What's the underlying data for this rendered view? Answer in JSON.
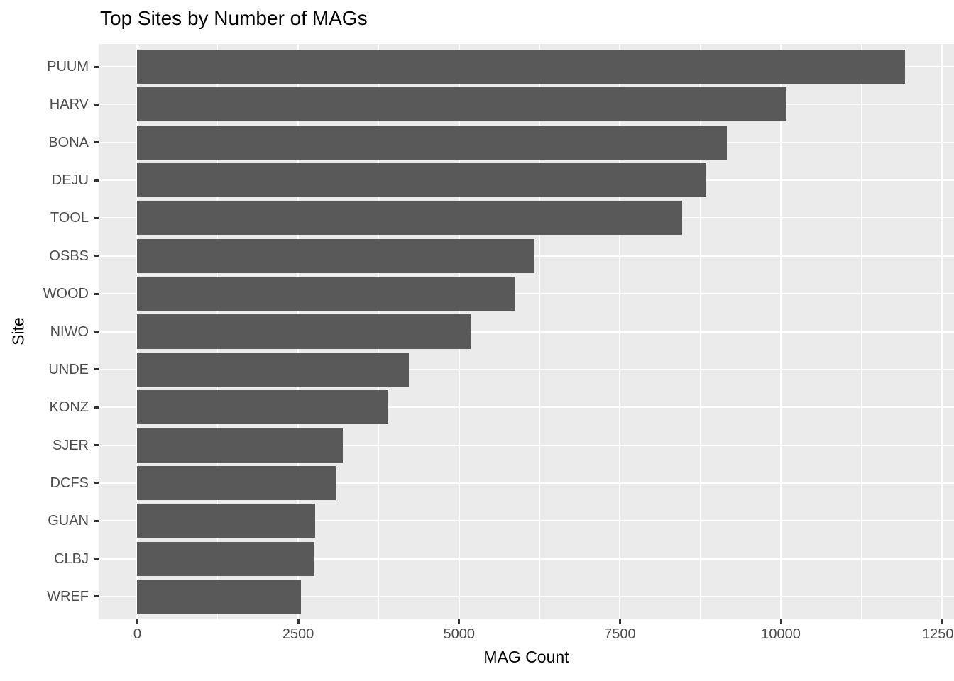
{
  "chart_data": {
    "type": "bar",
    "orientation": "horizontal",
    "title": "Top Sites by Number of MAGs",
    "xlabel": "MAG Count",
    "ylabel": "Site",
    "categories": [
      "PUUM",
      "HARV",
      "BONA",
      "DEJU",
      "TOOL",
      "OSBS",
      "WOOD",
      "NIWO",
      "UNDE",
      "KONZ",
      "SJER",
      "DCFS",
      "GUAN",
      "CLBJ",
      "WREF"
    ],
    "values": [
      11930,
      10075,
      9165,
      8845,
      8470,
      6170,
      5870,
      5180,
      4215,
      3905,
      3190,
      3080,
      2765,
      2755,
      2540
    ],
    "x_ticks": [
      0,
      2500,
      5000,
      7500,
      10000,
      12500
    ],
    "x_minor_ticks": [
      1250,
      3750,
      6250,
      8750,
      11250
    ],
    "xlim": [
      -600,
      12690
    ],
    "grid": true,
    "legend": false,
    "bar_width_fraction": 0.9,
    "colors": {
      "bar": "#595959",
      "panel_background": "#EBEBEB",
      "grid": "#FFFFFF",
      "tick_label": "#4D4D4D",
      "axis_title": "#000000",
      "title": "#000000",
      "tick_mark": "#333333"
    }
  }
}
